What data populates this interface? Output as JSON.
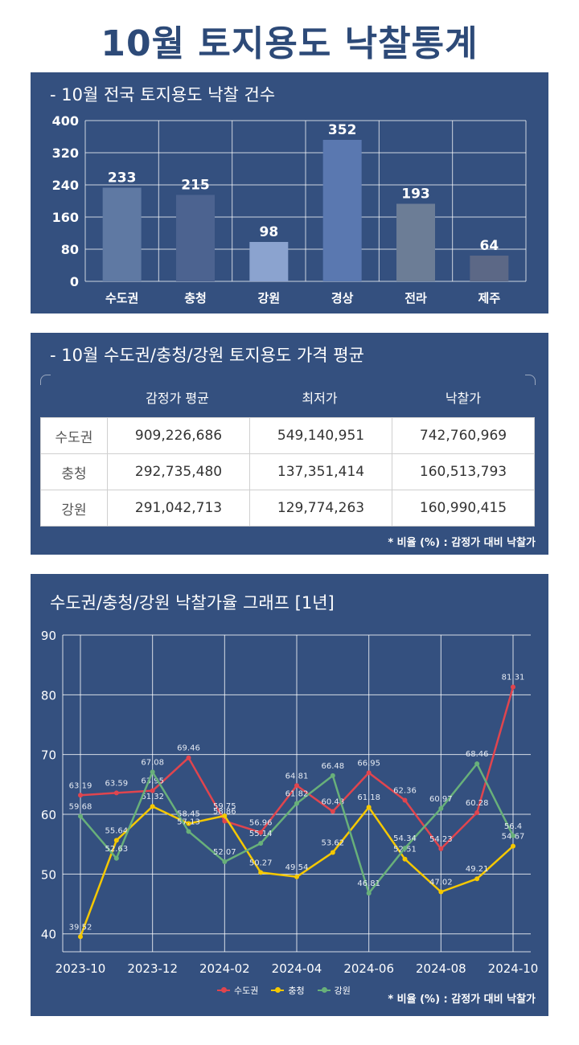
{
  "title": "10월 토지용도 낙찰통계",
  "bar_panel": {
    "title": "- 10월 전국 토지용도 낙찰 건수"
  },
  "table_panel": {
    "title": "- 10월 수도권/충청/강원 토지용도 가격 평균",
    "headers": [
      "감정가 평균",
      "최저가",
      "낙찰가"
    ],
    "rows": [
      {
        "label": "수도권",
        "cells": [
          "909,226,686",
          "549,140,951",
          "742,760,969"
        ]
      },
      {
        "label": "충청",
        "cells": [
          "292,735,480",
          "137,351,414",
          "160,513,793"
        ]
      },
      {
        "label": "강원",
        "cells": [
          "291,042,713",
          "129,774,263",
          "160,990,415"
        ]
      }
    ],
    "note": "* 비율 (%) : 감정가 대비 낙찰가"
  },
  "line_panel": {
    "title": "수도권/충청/강원 낙찰가율 그래프 [1년]",
    "note": "* 비율 (%) : 감정가 대비 낙찰가"
  },
  "colors": {
    "panel": "#34507f",
    "title": "#2d4a78",
    "bars": [
      "#5f79a3",
      "#4c6390",
      "#8ba3cf",
      "#5a78b0",
      "#6c7d96",
      "#5c6886"
    ],
    "series": [
      "#e0454e",
      "#f5c800",
      "#68b07a"
    ]
  },
  "chart_data": [
    {
      "type": "bar",
      "categories": [
        "수도권",
        "충청",
        "강원",
        "경상",
        "전라",
        "제주"
      ],
      "values": [
        233,
        215,
        98,
        352,
        193,
        64
      ],
      "ylim": [
        0,
        400
      ],
      "yticks": [
        0,
        80,
        160,
        240,
        320,
        400
      ],
      "grid": true
    },
    {
      "type": "line",
      "x": [
        "2023-10",
        "2023-11",
        "2023-12",
        "2024-01",
        "2024-02",
        "2024-03",
        "2024-04",
        "2024-05",
        "2024-06",
        "2024-07",
        "2024-08",
        "2024-09",
        "2024-10"
      ],
      "xtick_labels": [
        "2023-10",
        "2023-12",
        "2024-02",
        "2024-04",
        "2024-06",
        "2024-08",
        "2024-10"
      ],
      "ylim": [
        37,
        90
      ],
      "yticks": [
        40,
        50,
        60,
        70,
        80,
        90
      ],
      "grid": true,
      "legend": "bottom",
      "series": [
        {
          "name": "수도권",
          "values": [
            63.19,
            63.59,
            63.95,
            69.46,
            58.86,
            56.96,
            64.81,
            60.48,
            66.95,
            62.36,
            54.23,
            60.28,
            81.31
          ]
        },
        {
          "name": "충청",
          "values": [
            39.52,
            55.64,
            61.32,
            58.45,
            59.75,
            50.27,
            49.54,
            53.62,
            61.18,
            52.51,
            47.02,
            49.21,
            54.67
          ]
        },
        {
          "name": "강원",
          "values": [
            59.68,
            52.63,
            67.08,
            57.13,
            52.07,
            55.14,
            61.82,
            66.48,
            46.81,
            54.34,
            60.97,
            68.46,
            56.4
          ]
        }
      ]
    }
  ]
}
